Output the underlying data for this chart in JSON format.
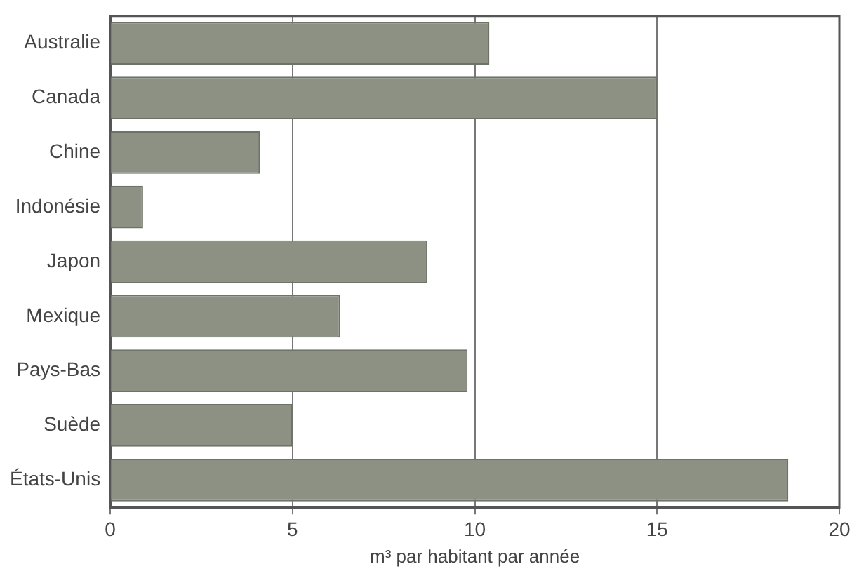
{
  "chart_data": {
    "type": "bar",
    "orientation": "horizontal",
    "xlabel": "m³ par habitant par année",
    "categories": [
      "Australie",
      "Canada",
      "Chine",
      "Indonésie",
      "Japon",
      "Mexique",
      "Pays-Bas",
      "Suède",
      "États-Unis"
    ],
    "values": [
      10.4,
      15.0,
      4.1,
      0.9,
      8.7,
      6.3,
      9.8,
      5.0,
      18.6
    ],
    "color": "#8c9184",
    "xlim": [
      0,
      20
    ],
    "xticks": [
      0,
      5,
      10,
      15,
      20
    ],
    "grid": "x",
    "legend": false
  }
}
